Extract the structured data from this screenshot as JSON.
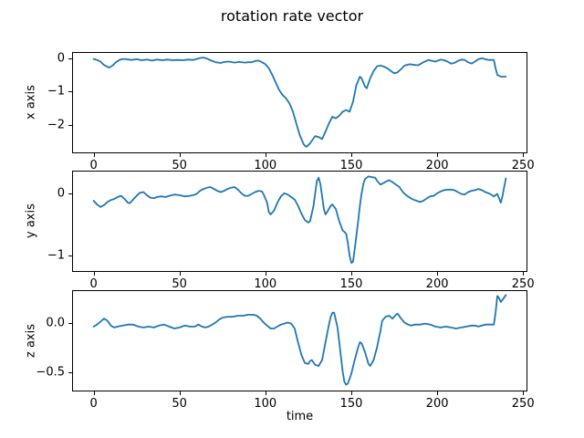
{
  "title": "rotation rate vector",
  "background_color": "#ffffff",
  "axes_edge_color": "#000000",
  "chart_data": [
    {
      "type": "line",
      "ylabel": "x axis",
      "line_color": "#1f77b4",
      "xlim": [
        -12,
        252
      ],
      "ylim": [
        -2.82,
        0.16
      ],
      "grid": false,
      "legend": null,
      "xticks": {
        "values": [
          0,
          50,
          100,
          150,
          200,
          250
        ],
        "labels": [
          "0",
          "50",
          "100",
          "150",
          "200",
          "250"
        ]
      },
      "yticks": {
        "values": [
          0,
          -1,
          -2
        ],
        "labels": [
          "0",
          "−1",
          "−2"
        ]
      },
      "x": [
        0,
        2,
        4,
        6,
        9,
        11,
        13,
        15,
        17,
        19,
        22,
        25,
        28,
        31,
        34,
        37,
        40,
        43,
        46,
        49,
        52,
        55,
        58,
        60,
        62,
        64,
        66,
        68,
        71,
        74,
        76,
        79,
        82,
        85,
        88,
        90,
        92,
        94,
        96,
        98,
        100,
        102,
        104,
        106,
        108,
        110,
        112,
        114,
        116,
        118,
        120,
        122,
        123,
        124,
        126,
        128,
        129,
        131,
        133,
        135,
        137,
        139,
        141,
        143,
        145,
        147,
        149,
        151,
        153,
        155,
        156,
        158,
        159,
        161,
        163,
        165,
        167,
        169,
        171,
        173,
        175,
        177,
        179,
        181,
        184,
        187,
        189,
        192,
        195,
        197,
        199,
        202,
        204,
        206,
        208,
        210,
        212,
        214,
        216,
        218,
        220,
        222,
        224,
        226,
        228,
        230,
        232,
        233,
        234,
        235,
        237,
        240
      ],
      "y": [
        -0.02,
        -0.05,
        -0.1,
        -0.2,
        -0.28,
        -0.22,
        -0.12,
        -0.05,
        -0.02,
        -0.03,
        -0.05,
        -0.03,
        -0.06,
        -0.04,
        -0.07,
        -0.04,
        -0.06,
        -0.04,
        -0.06,
        -0.05,
        -0.06,
        -0.04,
        -0.05,
        -0.02,
        0.01,
        0.02,
        -0.01,
        -0.06,
        -0.12,
        -0.14,
        -0.11,
        -0.1,
        -0.13,
        -0.11,
        -0.13,
        -0.12,
        -0.12,
        -0.08,
        -0.07,
        -0.12,
        -0.18,
        -0.3,
        -0.5,
        -0.72,
        -0.95,
        -1.1,
        -1.2,
        -1.35,
        -1.6,
        -1.95,
        -2.3,
        -2.55,
        -2.62,
        -2.65,
        -2.55,
        -2.4,
        -2.33,
        -2.36,
        -2.42,
        -2.2,
        -1.95,
        -1.75,
        -1.8,
        -1.72,
        -1.6,
        -1.55,
        -1.6,
        -1.3,
        -0.8,
        -0.55,
        -0.6,
        -0.85,
        -0.9,
        -0.6,
        -0.38,
        -0.24,
        -0.22,
        -0.25,
        -0.3,
        -0.38,
        -0.45,
        -0.42,
        -0.32,
        -0.22,
        -0.18,
        -0.2,
        -0.21,
        -0.12,
        -0.05,
        -0.08,
        -0.1,
        -0.04,
        -0.06,
        -0.1,
        -0.16,
        -0.14,
        -0.08,
        -0.04,
        -0.05,
        -0.12,
        -0.16,
        -0.1,
        -0.03,
        0.0,
        -0.03,
        -0.05,
        -0.05,
        -0.05,
        -0.3,
        -0.5,
        -0.55,
        -0.55
      ]
    },
    {
      "type": "line",
      "ylabel": "y axis",
      "line_color": "#1f77b4",
      "xlim": [
        -12,
        252
      ],
      "ylim": [
        -1.25,
        0.35
      ],
      "grid": false,
      "legend": null,
      "xticks": {
        "values": [
          0,
          50,
          100,
          150,
          200,
          250
        ],
        "labels": [
          "0",
          "50",
          "100",
          "150",
          "200",
          "250"
        ]
      },
      "yticks": {
        "values": [
          0,
          -1
        ],
        "labels": [
          "0",
          "−1"
        ]
      },
      "x": [
        0,
        2,
        4,
        6,
        8,
        10,
        12,
        14,
        16,
        18,
        20,
        21,
        23,
        25,
        27,
        29,
        31,
        33,
        35,
        37,
        39,
        42,
        44,
        47,
        50,
        53,
        56,
        58,
        60,
        62,
        64,
        66,
        68,
        70,
        72,
        74,
        76,
        78,
        80,
        82,
        84,
        86,
        88,
        90,
        92,
        94,
        96,
        98,
        99,
        101,
        102,
        103,
        105,
        107,
        109,
        111,
        113,
        115,
        117,
        119,
        121,
        123,
        125,
        126,
        128,
        129,
        130,
        131,
        132,
        133,
        134,
        135,
        136,
        138,
        139,
        141,
        143,
        145,
        146,
        147,
        148,
        149,
        150,
        151,
        152,
        154,
        155,
        156,
        157,
        158,
        160,
        162,
        164,
        165,
        167,
        169,
        171,
        172,
        174,
        176,
        178,
        180,
        182,
        184,
        186,
        188,
        190,
        192,
        194,
        196,
        198,
        200,
        202,
        204,
        206,
        208,
        210,
        212,
        214,
        216,
        218,
        220,
        222,
        224,
        226,
        228,
        230,
        232,
        233,
        234,
        235,
        236,
        237,
        238,
        239,
        240
      ],
      "y": [
        -0.12,
        -0.18,
        -0.22,
        -0.19,
        -0.14,
        -0.11,
        -0.09,
        -0.06,
        -0.04,
        -0.09,
        -0.15,
        -0.16,
        -0.1,
        -0.04,
        0.01,
        0.02,
        -0.03,
        -0.07,
        -0.08,
        -0.06,
        -0.05,
        -0.06,
        -0.04,
        -0.02,
        -0.03,
        -0.05,
        -0.04,
        -0.03,
        -0.01,
        0.04,
        0.07,
        0.09,
        0.1,
        0.07,
        0.04,
        0.02,
        0.04,
        0.07,
        0.09,
        0.1,
        0.06,
        0.0,
        -0.04,
        -0.04,
        -0.01,
        0.02,
        0.04,
        0.03,
        -0.02,
        -0.15,
        -0.3,
        -0.34,
        -0.28,
        -0.15,
        -0.05,
        0.0,
        -0.02,
        -0.06,
        -0.1,
        -0.2,
        -0.33,
        -0.43,
        -0.47,
        -0.45,
        -0.2,
        0.0,
        0.2,
        0.25,
        0.15,
        -0.05,
        -0.25,
        -0.34,
        -0.3,
        -0.2,
        -0.18,
        -0.25,
        -0.45,
        -0.6,
        -0.62,
        -0.65,
        -0.8,
        -1.0,
        -1.12,
        -1.1,
        -0.9,
        -0.45,
        -0.2,
        0.0,
        0.15,
        0.23,
        0.27,
        0.26,
        0.25,
        0.2,
        0.14,
        0.17,
        0.2,
        0.21,
        0.18,
        0.14,
        0.1,
        0.02,
        -0.03,
        -0.07,
        -0.1,
        -0.12,
        -0.14,
        -0.12,
        -0.08,
        -0.05,
        -0.04,
        0.0,
        0.03,
        0.05,
        0.06,
        0.06,
        0.05,
        0.02,
        -0.01,
        -0.02,
        0.02,
        0.04,
        0.05,
        0.07,
        0.05,
        0.02,
        0.0,
        -0.03,
        -0.05,
        -0.03,
        -0.01,
        -0.08,
        -0.15,
        -0.05,
        0.1,
        0.24
      ]
    },
    {
      "type": "line",
      "ylabel": "z axis",
      "xlabel": "time",
      "line_color": "#1f77b4",
      "xlim": [
        -12,
        252
      ],
      "ylim": [
        -0.69,
        0.32
      ],
      "grid": false,
      "legend": null,
      "xticks": {
        "values": [
          0,
          50,
          100,
          150,
          200,
          250
        ],
        "labels": [
          "0",
          "50",
          "100",
          "150",
          "200",
          "250"
        ]
      },
      "yticks": {
        "values": [
          0,
          -0.5
        ],
        "labels": [
          "0.0",
          "−0.5"
        ]
      },
      "x": [
        0,
        2,
        4,
        6,
        8,
        10,
        12,
        14,
        17,
        20,
        23,
        26,
        29,
        32,
        35,
        38,
        41,
        44,
        47,
        50,
        53,
        56,
        59,
        61,
        63,
        65,
        67,
        69,
        71,
        73,
        75,
        78,
        81,
        84,
        87,
        90,
        93,
        95,
        97,
        99,
        101,
        103,
        105,
        107,
        109,
        111,
        113,
        115,
        117,
        119,
        121,
        123,
        125,
        126,
        127,
        129,
        131,
        133,
        135,
        137,
        138,
        139,
        140,
        142,
        144,
        145,
        146,
        147,
        148,
        150,
        152,
        154,
        155,
        156,
        158,
        160,
        161,
        163,
        165,
        167,
        168,
        170,
        172,
        174,
        176,
        177,
        179,
        181,
        183,
        185,
        187,
        190,
        193,
        196,
        199,
        202,
        205,
        208,
        211,
        214,
        217,
        220,
        222,
        224,
        226,
        228,
        230,
        232,
        233,
        234,
        235,
        236,
        237,
        238,
        240
      ],
      "y": [
        -0.04,
        -0.02,
        0.01,
        0.04,
        0.02,
        -0.03,
        -0.05,
        -0.04,
        -0.03,
        -0.02,
        -0.02,
        -0.04,
        -0.05,
        -0.04,
        -0.05,
        -0.03,
        -0.02,
        -0.04,
        -0.06,
        -0.05,
        -0.03,
        -0.04,
        -0.04,
        -0.02,
        -0.04,
        -0.05,
        -0.04,
        -0.02,
        0.0,
        0.03,
        0.05,
        0.06,
        0.06,
        0.07,
        0.07,
        0.08,
        0.08,
        0.07,
        0.04,
        0.0,
        -0.03,
        -0.06,
        -0.06,
        -0.04,
        -0.02,
        -0.01,
        0.0,
        -0.01,
        -0.06,
        -0.2,
        -0.33,
        -0.41,
        -0.42,
        -0.39,
        -0.38,
        -0.43,
        -0.44,
        -0.38,
        -0.2,
        -0.02,
        0.06,
        0.1,
        0.1,
        -0.05,
        -0.35,
        -0.5,
        -0.6,
        -0.63,
        -0.62,
        -0.52,
        -0.38,
        -0.25,
        -0.2,
        -0.21,
        -0.3,
        -0.42,
        -0.44,
        -0.38,
        -0.25,
        -0.08,
        0.02,
        0.06,
        0.07,
        0.04,
        0.08,
        0.09,
        0.04,
        0.0,
        -0.02,
        -0.03,
        -0.02,
        -0.02,
        -0.01,
        -0.02,
        -0.04,
        -0.05,
        -0.04,
        -0.05,
        -0.06,
        -0.05,
        -0.04,
        -0.03,
        -0.03,
        -0.04,
        -0.03,
        -0.02,
        -0.02,
        -0.02,
        -0.02,
        0.1,
        0.27,
        0.25,
        0.21,
        0.23,
        0.28
      ]
    }
  ]
}
